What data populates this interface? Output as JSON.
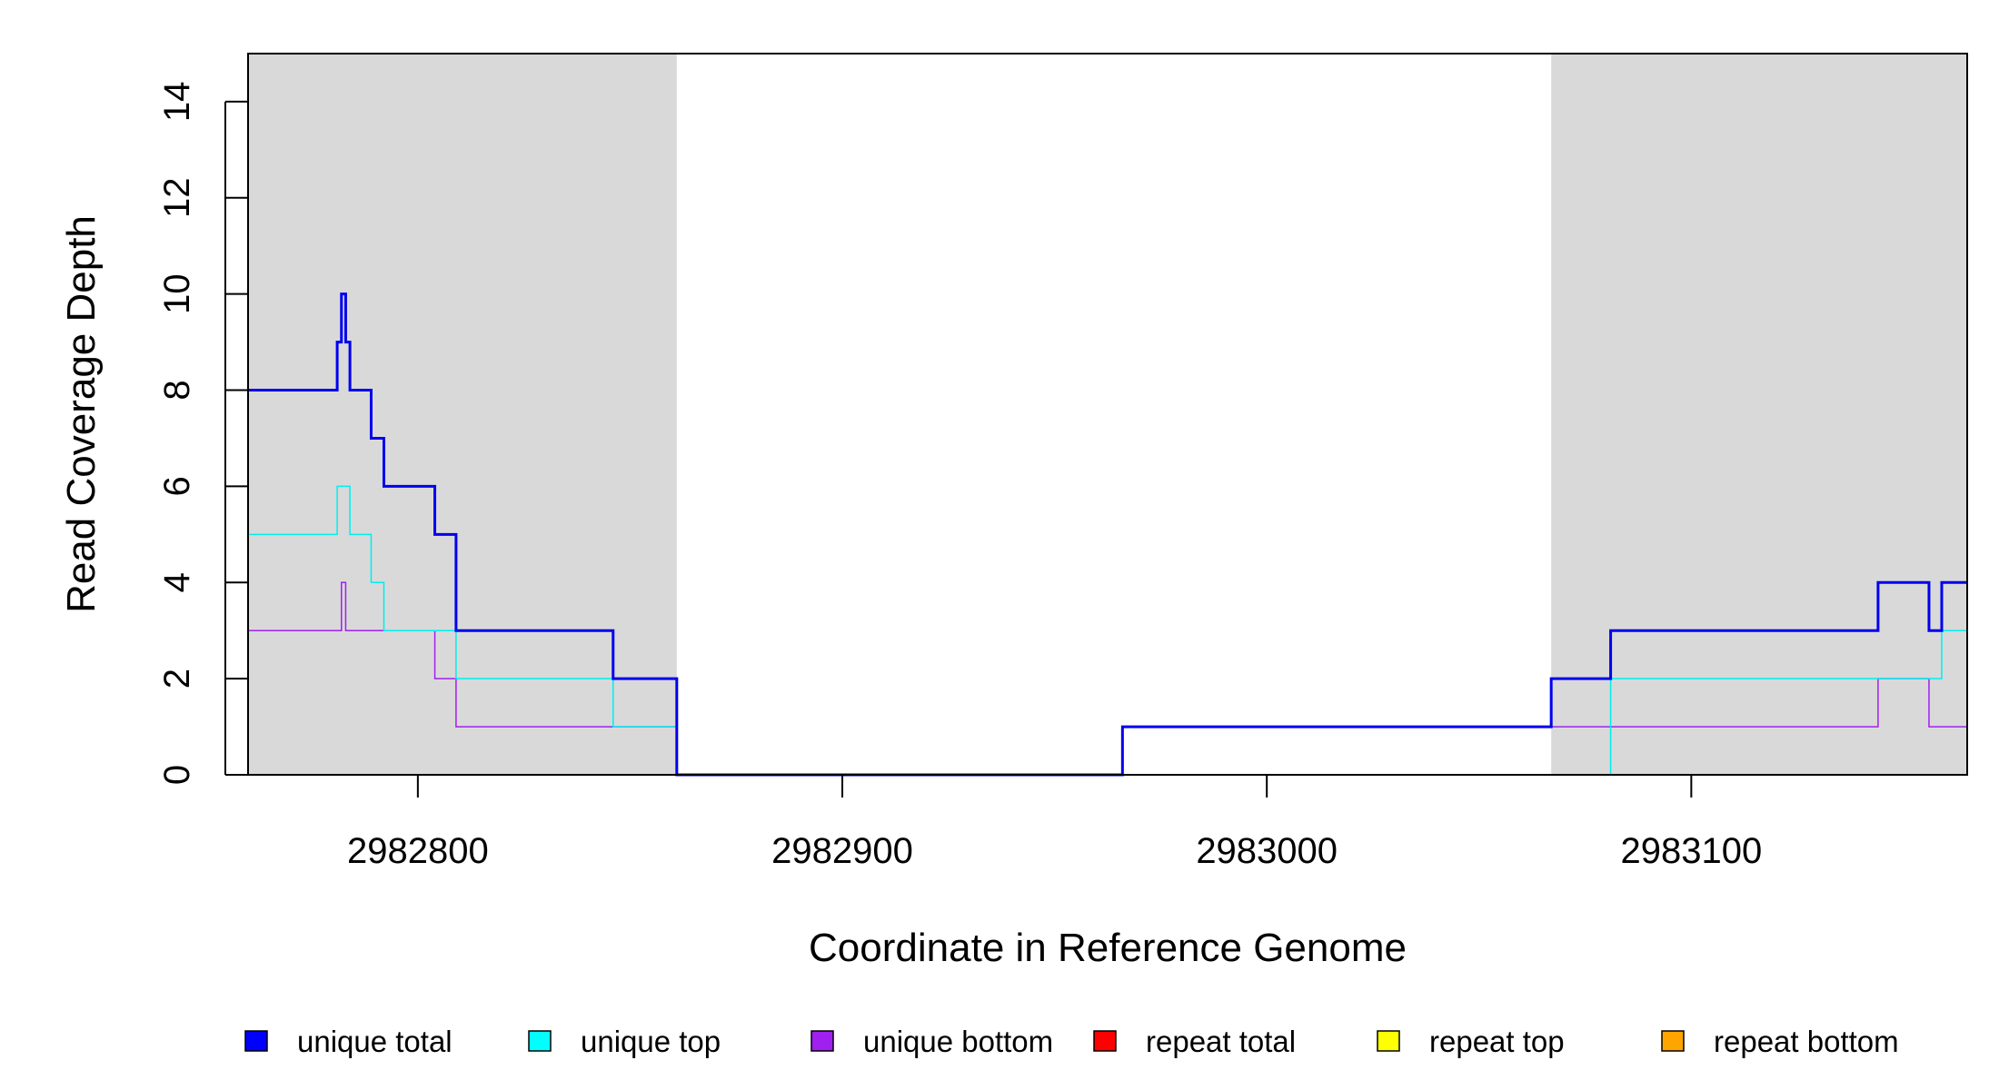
{
  "chart_data": {
    "type": "line",
    "step": true,
    "xlabel": "Coordinate in Reference Genome",
    "ylabel": "Read Coverage Depth",
    "xlim": [
      2982760,
      2983165
    ],
    "ylim": [
      0,
      15
    ],
    "xticks": [
      2982800,
      2982900,
      2983000,
      2983100
    ],
    "yticks": [
      0,
      2,
      4,
      6,
      8,
      10,
      12,
      14
    ],
    "shaded_regions": [
      {
        "x_start": 2982760,
        "x_end": 2982861,
        "color": "#d9d9d9"
      },
      {
        "x_start": 2983067,
        "x_end": 2983165,
        "color": "#d9d9d9"
      }
    ],
    "series": [
      {
        "name": "unique total",
        "color": "#0000ee",
        "line_width": 3,
        "points": [
          [
            2982760,
            8
          ],
          [
            2982781,
            9
          ],
          [
            2982782,
            10
          ],
          [
            2982783,
            9
          ],
          [
            2982784,
            8
          ],
          [
            2982789,
            7
          ],
          [
            2982792,
            6
          ],
          [
            2982804,
            5
          ],
          [
            2982809,
            3
          ],
          [
            2982846,
            2
          ],
          [
            2982861,
            0
          ],
          [
            2982966,
            1
          ],
          [
            2983067,
            2
          ],
          [
            2983081,
            3
          ],
          [
            2983144,
            4
          ],
          [
            2983156,
            3
          ],
          [
            2983159,
            4
          ],
          [
            2983165,
            4
          ]
        ]
      },
      {
        "name": "unique top",
        "color": "#00eeee",
        "line_width": 1.5,
        "points": [
          [
            2982760,
            5
          ],
          [
            2982781,
            6
          ],
          [
            2982784,
            5
          ],
          [
            2982789,
            4
          ],
          [
            2982792,
            3
          ],
          [
            2982809,
            2
          ],
          [
            2982846,
            1
          ],
          [
            2982861,
            0
          ],
          [
            2983081,
            2
          ],
          [
            2983159,
            3
          ],
          [
            2983165,
            3
          ]
        ]
      },
      {
        "name": "unique bottom",
        "color": "#a020f0",
        "line_width": 1.5,
        "points": [
          [
            2982760,
            3
          ],
          [
            2982782,
            4
          ],
          [
            2982783,
            3
          ],
          [
            2982804,
            2
          ],
          [
            2982809,
            1
          ],
          [
            2982861,
            0
          ],
          [
            2982966,
            1
          ],
          [
            2983144,
            2
          ],
          [
            2983156,
            1
          ],
          [
            2983165,
            1
          ]
        ]
      },
      {
        "name": "repeat total",
        "color": "#ff0000",
        "line_width": 1.5,
        "points": [
          [
            2982760,
            0
          ],
          [
            2983165,
            0
          ]
        ]
      },
      {
        "name": "repeat top",
        "color": "#ffff00",
        "line_width": 1.5,
        "points": [
          [
            2982760,
            0
          ],
          [
            2983165,
            0
          ]
        ]
      },
      {
        "name": "repeat bottom",
        "color": "#ffa500",
        "line_width": 2,
        "points": [
          [
            2982760,
            0
          ],
          [
            2983165,
            0
          ]
        ]
      }
    ],
    "legend": {
      "position": "bottom",
      "entries": [
        {
          "label": "unique total",
          "color": "#0000ff"
        },
        {
          "label": "unique top",
          "color": "#00ffff"
        },
        {
          "label": "unique bottom",
          "color": "#a020f0"
        },
        {
          "label": "repeat total",
          "color": "#ff0000"
        },
        {
          "label": "repeat top",
          "color": "#ffff00"
        },
        {
          "label": "repeat bottom",
          "color": "#ffa500"
        }
      ]
    }
  }
}
